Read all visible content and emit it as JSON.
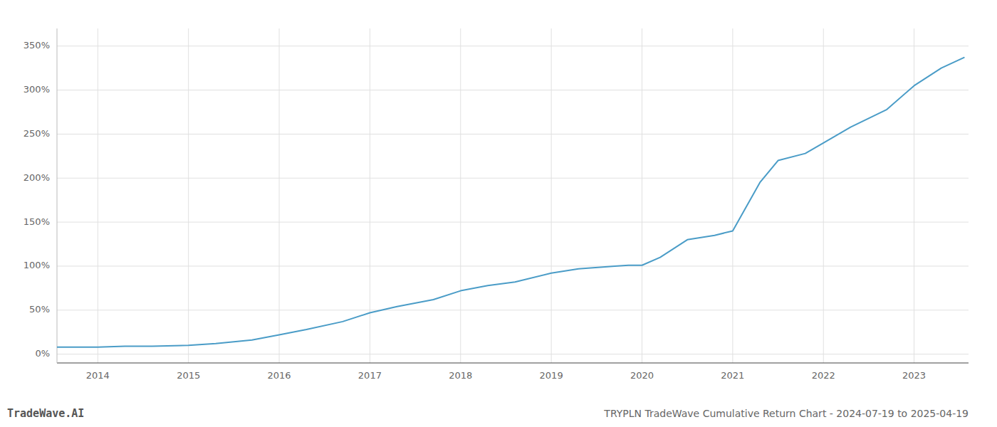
{
  "chart_data": {
    "type": "line",
    "title": "TRYPLN TradeWave Cumulative Return Chart - 2024-07-19 to 2025-04-19",
    "annotations": [
      "TradeWave.AI"
    ],
    "color": "#4a9cc7",
    "grid": true,
    "x": [
      2013.55,
      2014.0,
      2014.3,
      2014.6,
      2015.0,
      2015.3,
      2015.7,
      2016.0,
      2016.3,
      2016.7,
      2017.0,
      2017.3,
      2017.7,
      2018.0,
      2018.3,
      2018.6,
      2019.0,
      2019.3,
      2019.7,
      2019.85,
      2020.0,
      2020.2,
      2020.5,
      2020.8,
      2021.0,
      2021.3,
      2021.5,
      2021.8,
      2022.0,
      2022.3,
      2022.7,
      2023.0,
      2023.3,
      2023.55
    ],
    "values": [
      8,
      8,
      9,
      9,
      10,
      12,
      16,
      22,
      28,
      37,
      47,
      54,
      62,
      72,
      78,
      82,
      92,
      97,
      100,
      101,
      101,
      110,
      130,
      135,
      140,
      195,
      220,
      228,
      240,
      258,
      278,
      305,
      325,
      337
    ],
    "xlim": [
      2013.55,
      2023.6
    ],
    "xticks": [
      2014,
      2015,
      2016,
      2017,
      2018,
      2019,
      2020,
      2021,
      2022,
      2023
    ],
    "ylim": [
      -10,
      370
    ],
    "yticks": [
      {
        "value": 0,
        "label": "0%"
      },
      {
        "value": 50,
        "label": "50%"
      },
      {
        "value": 100,
        "label": "100%"
      },
      {
        "value": 150,
        "label": "150%"
      },
      {
        "value": 200,
        "label": "200%"
      },
      {
        "value": 250,
        "label": "250%"
      },
      {
        "value": 300,
        "label": "300%"
      },
      {
        "value": 350,
        "label": "350%"
      }
    ]
  }
}
